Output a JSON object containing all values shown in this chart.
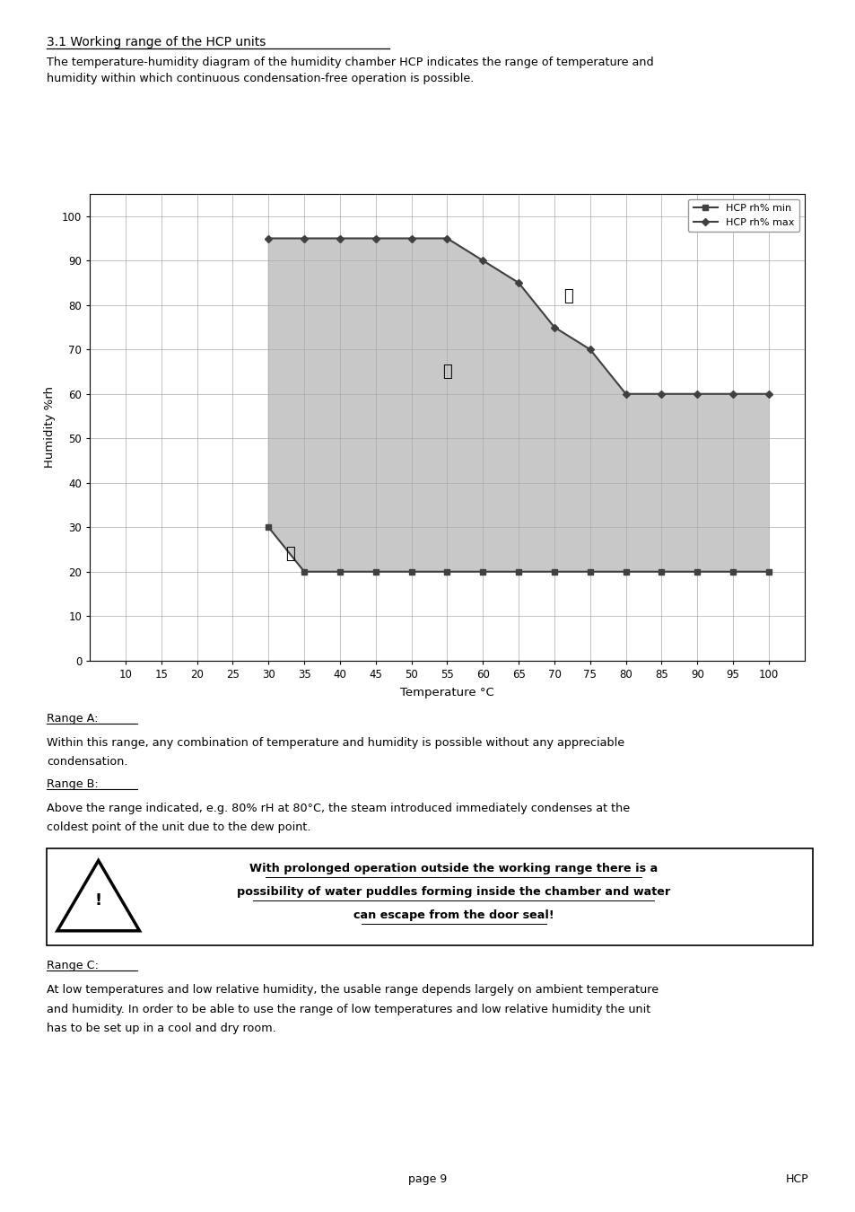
{
  "title": "3.1 Working range of the HCP units",
  "intro_text1": "The temperature-humidity diagram of the humidity chamber HCP indicates the range of temperature and",
  "intro_text2": "humidity within which continuous condensation-free operation is possible.",
  "xlabel": "Temperature °C",
  "ylabel": "Humidity %rh",
  "xlim": [
    5,
    105
  ],
  "ylim": [
    0,
    105
  ],
  "xticks": [
    10,
    15,
    20,
    25,
    30,
    35,
    40,
    45,
    50,
    55,
    60,
    65,
    70,
    75,
    80,
    85,
    90,
    95,
    100
  ],
  "yticks": [
    0,
    10,
    20,
    30,
    40,
    50,
    60,
    70,
    80,
    90,
    100
  ],
  "hcp_min_x": [
    30,
    35,
    40,
    45,
    50,
    55,
    60,
    65,
    70,
    75,
    80,
    85,
    90,
    95,
    100
  ],
  "hcp_min_y": [
    30,
    20,
    20,
    20,
    20,
    20,
    20,
    20,
    20,
    20,
    20,
    20,
    20,
    20,
    20
  ],
  "hcp_max_x": [
    30,
    35,
    40,
    45,
    50,
    55,
    60,
    65,
    70,
    75,
    80,
    85,
    90,
    95,
    100
  ],
  "hcp_max_y": [
    95,
    95,
    95,
    95,
    95,
    95,
    90,
    85,
    75,
    70,
    60,
    60,
    60,
    60,
    60
  ],
  "fill_color": "#c8c8c8",
  "line_color": "#404040",
  "legend_min_label": "HCP rh% min",
  "legend_max_label": "HCP rh% max",
  "range_A_x": 55,
  "range_A_y": 65,
  "range_B_x": 72,
  "range_B_y": 82,
  "range_C_x": 33,
  "range_C_y": 24,
  "range_A_label": "Ⓐ",
  "range_B_label": "Ⓑ",
  "range_C_label": "Ⓒ",
  "range_A_title": "Range A:",
  "range_A_text1": "Within this range, any combination of temperature and humidity is possible without any appreciable",
  "range_A_text2": "condensation.",
  "range_B_title": "Range B:",
  "range_B_text1": "Above the range indicated, e.g. 80% rH at 80°C, the steam introduced immediately condenses at the",
  "range_B_text2": "coldest point of the unit due to the dew point.",
  "warn_line1": "With prolonged operation outside the working range there is a",
  "warn_line2": "possibility of water puddles forming inside the chamber and water",
  "warn_line3": "can escape from the door seal!",
  "range_C_title": "Range C:",
  "range_C_text1": "At low temperatures and low relative humidity, the usable range depends largely on ambient temperature",
  "range_C_text2": "and humidity. In order to be able to use the range of low temperatures and low relative humidity the unit",
  "range_C_text3": "has to be set up in a cool and dry room.",
  "footer_left": "page 9",
  "footer_right": "HCP"
}
